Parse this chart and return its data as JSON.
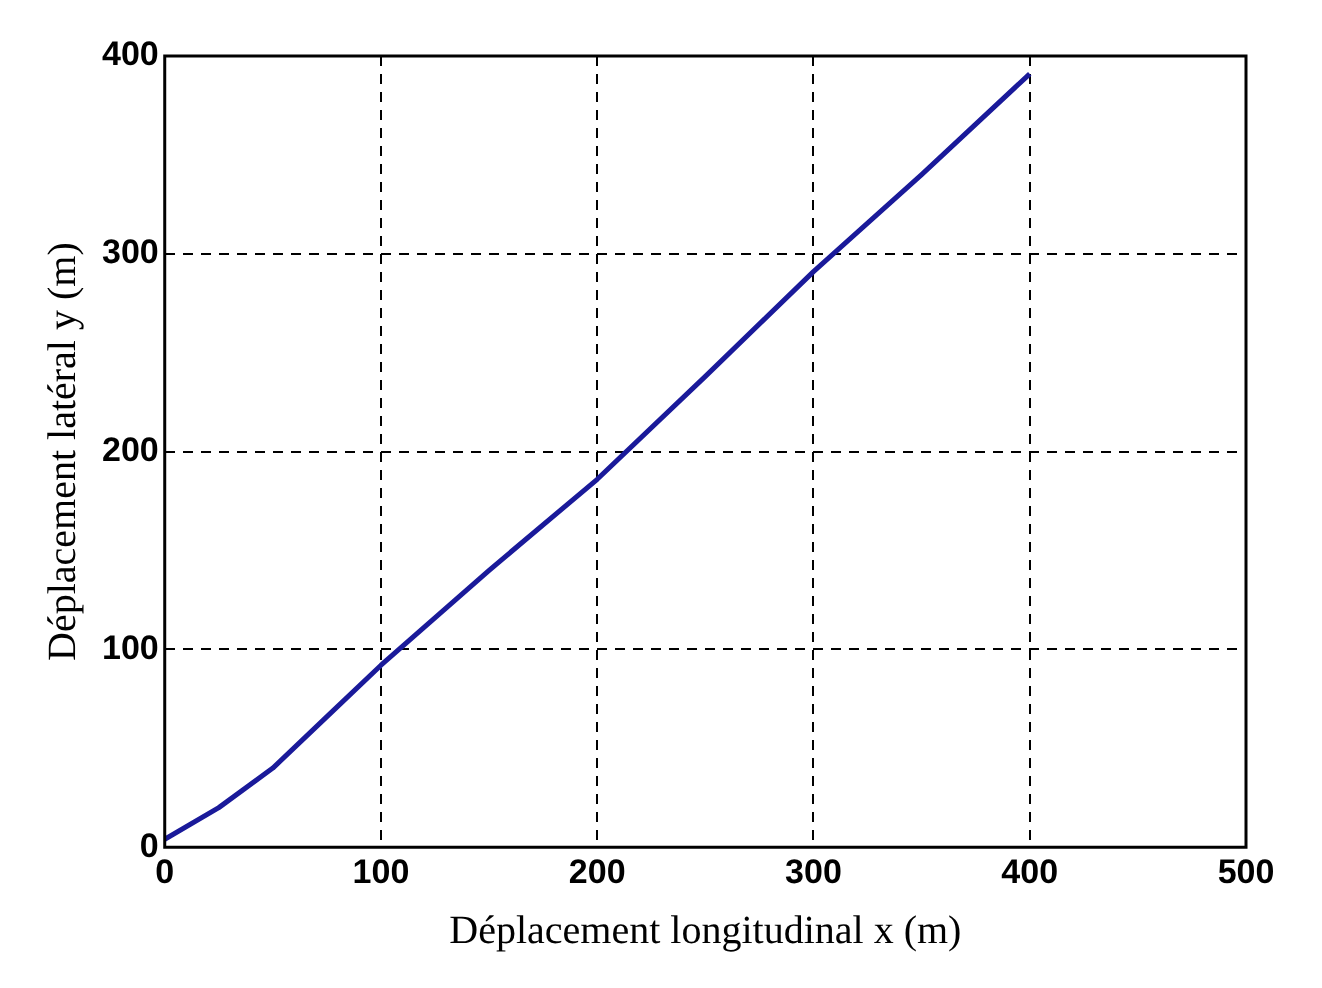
{
  "chart_data": {
    "type": "line",
    "xlabel": "Déplacement longitudinal x (m)",
    "ylabel": "Déplacement latéral y (m)",
    "x": [
      0,
      25,
      50,
      75,
      100,
      150,
      200,
      250,
      300,
      350,
      400
    ],
    "series": [
      {
        "color": "#1a1a9a",
        "values": [
          4,
          20,
          40,
          66,
          92,
          140,
          186,
          238,
          291,
          340,
          391
        ]
      }
    ],
    "xlim": [
      0,
      500
    ],
    "xticks": [
      0,
      100,
      200,
      300,
      400,
      500
    ],
    "ylim": [
      0,
      400
    ],
    "yticks": [
      0,
      100,
      200,
      300,
      400
    ],
    "grid": true,
    "legend": false,
    "marker": "none",
    "line_style": "solid"
  }
}
